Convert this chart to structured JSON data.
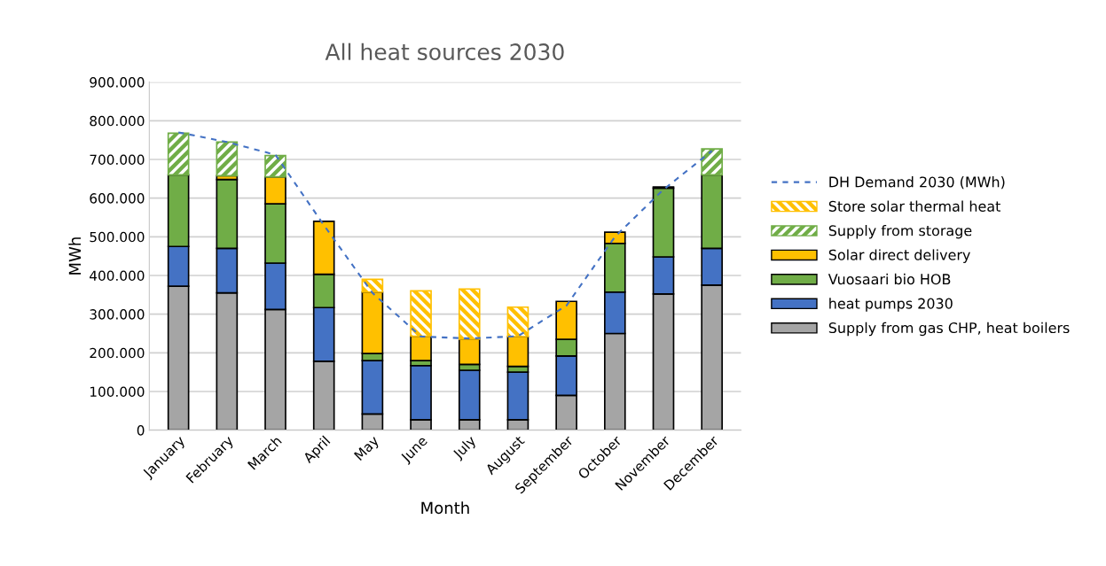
{
  "chart_data": {
    "type": "bar",
    "stacked": true,
    "title": "All heat sources 2030",
    "xlabel": "Month",
    "ylabel": "MWh",
    "categories": [
      "January",
      "February",
      "March",
      "April",
      "May",
      "June",
      "July",
      "August",
      "September",
      "October",
      "November",
      "December"
    ],
    "ylim": [
      0,
      900000
    ],
    "yticks": [
      {
        "value": 0,
        "label": "0"
      },
      {
        "value": 100000,
        "label": "100.000"
      },
      {
        "value": 200000,
        "label": "200.000"
      },
      {
        "value": 300000,
        "label": "300.000"
      },
      {
        "value": 400000,
        "label": "400.000"
      },
      {
        "value": 500000,
        "label": "500.000"
      },
      {
        "value": 600000,
        "label": "600.000"
      },
      {
        "value": 700000,
        "label": "700.000"
      },
      {
        "value": 800000,
        "label": "800.000"
      },
      {
        "value": 900000,
        "label": "900.000"
      }
    ],
    "grid": "y",
    "legend": "right",
    "series": [
      {
        "name": "Supply from gas CHP, heat boilers",
        "color": "#a5a5a5",
        "values": [
          372000,
          355000,
          312000,
          178000,
          42000,
          27000,
          27000,
          27000,
          90000,
          250000,
          352000,
          375000
        ]
      },
      {
        "name": "heat pumps 2030",
        "color": "#4472c4",
        "values": [
          103000,
          115000,
          120000,
          139000,
          138000,
          140000,
          128000,
          123000,
          102000,
          107000,
          96000,
          95000
        ]
      },
      {
        "name": "Vuosaari bio HOB",
        "color": "#70ad47",
        "values": [
          185000,
          178000,
          153000,
          86000,
          18000,
          13000,
          15000,
          15000,
          43000,
          126000,
          178000,
          190000
        ]
      },
      {
        "name": "Solar direct delivery",
        "color": "#ffc000",
        "values": [
          null,
          10000,
          70000,
          137000,
          159000,
          63000,
          65000,
          77000,
          98000,
          29000,
          3000,
          0
        ]
      },
      {
        "name": "Supply from storage",
        "color": "#70ad47",
        "values": [
          108000,
          87000,
          55000,
          0,
          0,
          0,
          0,
          0,
          0,
          0,
          0,
          67000
        ]
      },
      {
        "name": "Store solar thermal heat",
        "color": "#ffc000",
        "values": [
          0,
          0,
          0,
          0,
          33000,
          117000,
          130000,
          76000,
          0,
          0,
          0,
          0
        ]
      },
      {
        "name": "DH Demand 2030 (MWh)",
        "type": "line",
        "line_style": "dashed",
        "marker": "none",
        "color": "#4472c4",
        "values": [
          770000,
          745000,
          712000,
          530000,
          355000,
          242000,
          237000,
          243000,
          322000,
          500000,
          622000,
          722000
        ]
      }
    ]
  }
}
